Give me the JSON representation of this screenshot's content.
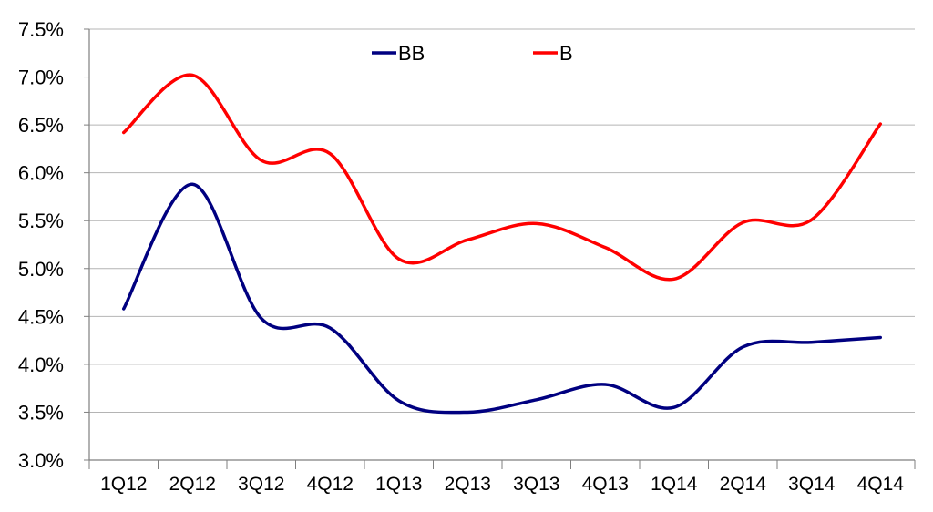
{
  "chart_data": {
    "type": "line",
    "categories": [
      "1Q12",
      "2Q12",
      "3Q12",
      "4Q12",
      "1Q13",
      "2Q13",
      "3Q13",
      "4Q13",
      "1Q14",
      "2Q14",
      "3Q14",
      "4Q14"
    ],
    "series": [
      {
        "name": "BB",
        "color": "#000080",
        "values": [
          4.58,
          5.88,
          4.48,
          4.38,
          3.62,
          3.5,
          3.63,
          3.79,
          3.55,
          4.18,
          4.23,
          4.28
        ]
      },
      {
        "name": "B",
        "color": "#ff0000",
        "values": [
          6.42,
          7.02,
          6.13,
          6.2,
          5.1,
          5.3,
          5.47,
          5.22,
          4.89,
          5.48,
          5.51,
          6.51
        ]
      }
    ],
    "y_ticks": [
      "3.0%",
      "3.5%",
      "4.0%",
      "4.5%",
      "5.0%",
      "5.5%",
      "6.0%",
      "6.5%",
      "7.0%",
      "7.5%"
    ],
    "ylim": [
      3.0,
      7.5
    ],
    "grid": "horizontal",
    "legend": "top-center",
    "title": "",
    "xlabel": "",
    "ylabel": ""
  }
}
